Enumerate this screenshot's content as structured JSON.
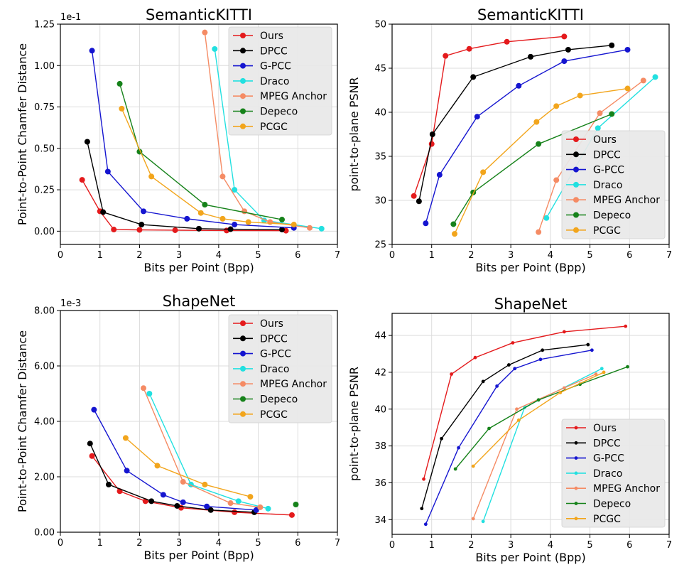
{
  "chart_data": [
    {
      "type": "line",
      "title": "SemanticKITTI",
      "xlabel": "Bits per Point (Bpp)",
      "ylabel": "Point-to-Point Chamfer Distance",
      "y_scale_label": "1e-1",
      "xlim": [
        0,
        7
      ],
      "ylim": [
        -0.08,
        1.25
      ],
      "xticks": [
        0,
        1,
        2,
        3,
        4,
        5,
        6,
        7
      ],
      "yticks": [
        0.0,
        0.25,
        0.5,
        0.75,
        1.0,
        1.25
      ],
      "ytick_labels": [
        "0.00",
        "0.25",
        "0.50",
        "0.75",
        "1.00",
        "1.25"
      ],
      "grid": true,
      "legend": "top-right",
      "series": [
        {
          "name": "Ours",
          "color": "#e41a1c",
          "x": [
            0.55,
            1.0,
            1.35,
            2.0,
            2.9,
            4.2,
            5.7
          ],
          "y": [
            0.31,
            0.12,
            0.01,
            0.008,
            0.006,
            0.004,
            0.003
          ]
        },
        {
          "name": "DPCC",
          "color": "#000000",
          "x": [
            0.68,
            1.08,
            2.05,
            3.5,
            4.3,
            5.6
          ],
          "y": [
            0.54,
            0.115,
            0.04,
            0.015,
            0.012,
            0.01
          ]
        },
        {
          "name": "G-PCC",
          "color": "#1515d0",
          "x": [
            0.8,
            1.2,
            2.1,
            3.2,
            4.4,
            5.9
          ],
          "y": [
            1.09,
            0.36,
            0.12,
            0.075,
            0.04,
            0.02
          ]
        },
        {
          "name": "Draco",
          "color": "#22e0e0",
          "x": [
            3.9,
            4.4,
            5.15,
            6.6
          ],
          "y": [
            1.1,
            0.25,
            0.065,
            0.015
          ]
        },
        {
          "name": "MPEG Anchor",
          "color": "#f58b64",
          "x": [
            3.65,
            4.1,
            4.65,
            5.3,
            6.3
          ],
          "y": [
            1.2,
            0.33,
            0.12,
            0.055,
            0.02
          ]
        },
        {
          "name": "Depeco",
          "color": "#16821a",
          "x": [
            1.5,
            2.0,
            3.65,
            5.6
          ],
          "y": [
            0.89,
            0.48,
            0.16,
            0.07
          ]
        },
        {
          "name": "PCGC",
          "color": "#f2a51c",
          "x": [
            1.55,
            2.3,
            3.55,
            4.1,
            4.75,
            5.9
          ],
          "y": [
            0.74,
            0.33,
            0.11,
            0.075,
            0.055,
            0.04
          ]
        }
      ]
    },
    {
      "type": "line",
      "title": "SemanticKITTI",
      "xlabel": "Bits per Point (Bpp)",
      "ylabel": "point-to-plane PSNR",
      "xlim": [
        0,
        7
      ],
      "ylim": [
        25,
        50
      ],
      "xticks": [
        0,
        1,
        2,
        3,
        4,
        5,
        6,
        7
      ],
      "yticks": [
        25,
        30,
        35,
        40,
        45,
        50
      ],
      "ytick_labels": [
        "25",
        "30",
        "35",
        "40",
        "45",
        "50"
      ],
      "grid": true,
      "legend": "bottom-right",
      "series": [
        {
          "name": "Ours",
          "color": "#e41a1c",
          "x": [
            0.55,
            1.0,
            1.35,
            1.95,
            2.9,
            4.35
          ],
          "y": [
            30.5,
            36.4,
            46.4,
            47.2,
            48.0,
            48.6
          ]
        },
        {
          "name": "DPCC",
          "color": "#000000",
          "x": [
            0.68,
            1.02,
            2.05,
            3.5,
            4.45,
            5.55
          ],
          "y": [
            29.9,
            37.5,
            44.0,
            46.3,
            47.1,
            47.6
          ]
        },
        {
          "name": "G-PCC",
          "color": "#1515d0",
          "x": [
            0.85,
            1.2,
            2.15,
            3.2,
            4.35,
            5.95
          ],
          "y": [
            27.4,
            32.9,
            39.5,
            43.0,
            45.8,
            47.1
          ]
        },
        {
          "name": "Draco",
          "color": "#22e0e0",
          "x": [
            3.9,
            5.2,
            6.65
          ],
          "y": [
            28.0,
            38.2,
            44.0
          ]
        },
        {
          "name": "MPEG Anchor",
          "color": "#f58b64",
          "x": [
            3.7,
            4.15,
            5.25,
            6.35
          ],
          "y": [
            26.4,
            32.3,
            39.9,
            43.6
          ]
        },
        {
          "name": "Depeco",
          "color": "#16821a",
          "x": [
            1.55,
            2.05,
            3.7,
            5.55
          ],
          "y": [
            27.3,
            30.9,
            36.4,
            39.8
          ]
        },
        {
          "name": "PCGC",
          "color": "#f2a51c",
          "x": [
            1.58,
            2.3,
            3.65,
            4.15,
            4.75,
            5.95
          ],
          "y": [
            26.2,
            33.2,
            38.9,
            40.7,
            41.9,
            42.7
          ]
        }
      ]
    },
    {
      "type": "line",
      "title": "ShapeNet",
      "xlabel": "Bits per Point (Bpp)",
      "ylabel": "Point-to-Point Chamfer Distance",
      "y_scale_label": "1e-3",
      "xlim": [
        0,
        7
      ],
      "ylim": [
        0,
        8
      ],
      "xticks": [
        0,
        1,
        2,
        3,
        4,
        5,
        6,
        7
      ],
      "yticks": [
        0,
        2,
        4,
        6,
        8
      ],
      "ytick_labels": [
        "0.00",
        "2.00",
        "4.00",
        "6.00",
        "8.00"
      ],
      "grid": true,
      "legend": "top-right",
      "series": [
        {
          "name": "Ours",
          "color": "#e41a1c",
          "x": [
            0.8,
            1.5,
            2.15,
            3.05,
            4.4,
            5.85
          ],
          "y": [
            2.75,
            1.48,
            1.12,
            0.88,
            0.72,
            0.62
          ]
        },
        {
          "name": "DPCC",
          "color": "#000000",
          "x": [
            0.75,
            1.22,
            2.3,
            2.95,
            3.8,
            4.9
          ],
          "y": [
            3.2,
            1.72,
            1.12,
            0.95,
            0.8,
            0.72
          ]
        },
        {
          "name": "G-PCC",
          "color": "#1515d0",
          "x": [
            0.85,
            1.68,
            2.6,
            3.1,
            3.7,
            4.95
          ],
          "y": [
            4.42,
            2.22,
            1.35,
            1.08,
            0.93,
            0.8
          ]
        },
        {
          "name": "Draco",
          "color": "#22e0e0",
          "x": [
            2.25,
            3.3,
            4.5,
            5.25
          ],
          "y": [
            5.0,
            1.72,
            1.12,
            0.85
          ]
        },
        {
          "name": "MPEG Anchor",
          "color": "#f58b64",
          "x": [
            2.1,
            3.1,
            4.3,
            5.05
          ],
          "y": [
            5.2,
            1.82,
            1.05,
            0.9
          ]
        },
        {
          "name": "Depeco",
          "color": "#16821a",
          "x": [
            5.95
          ],
          "y": [
            1.0
          ]
        },
        {
          "name": "PCGC",
          "color": "#f2a51c",
          "x": [
            1.65,
            2.45,
            3.65,
            4.8
          ],
          "y": [
            3.4,
            2.4,
            1.72,
            1.28
          ]
        }
      ]
    },
    {
      "type": "line",
      "title": "ShapeNet",
      "xlabel": "Bits per Point (Bpp)",
      "ylabel": "point-to-plane PSNR",
      "xlim": [
        0,
        7
      ],
      "ylim": [
        33.2,
        45.2
      ],
      "xticks": [
        0,
        1,
        2,
        3,
        4,
        5,
        6,
        7
      ],
      "yticks": [
        34,
        36,
        38,
        40,
        42,
        44
      ],
      "ytick_labels": [
        "34",
        "36",
        "38",
        "40",
        "42",
        "44"
      ],
      "grid": true,
      "legend": "bottom-right",
      "series": [
        {
          "name": "Ours",
          "color": "#e41a1c",
          "x": [
            0.8,
            1.5,
            2.1,
            3.05,
            4.35,
            5.9
          ],
          "y": [
            36.2,
            41.9,
            42.8,
            43.6,
            44.2,
            44.5
          ]
        },
        {
          "name": "DPCC",
          "color": "#000000",
          "x": [
            0.75,
            1.25,
            2.3,
            2.95,
            3.8,
            4.95
          ],
          "y": [
            34.6,
            38.4,
            41.5,
            42.4,
            43.2,
            43.5
          ]
        },
        {
          "name": "G-PCC",
          "color": "#1515d0",
          "x": [
            0.85,
            1.68,
            2.65,
            3.1,
            3.75,
            5.05
          ],
          "y": [
            33.75,
            37.9,
            41.25,
            42.2,
            42.7,
            43.2
          ]
        },
        {
          "name": "Draco",
          "color": "#22e0e0",
          "x": [
            2.3,
            3.35,
            5.3
          ],
          "y": [
            33.9,
            40.1,
            42.2
          ]
        },
        {
          "name": "MPEG Anchor",
          "color": "#f58b64",
          "x": [
            2.05,
            3.15,
            4.35,
            5.15
          ],
          "y": [
            34.05,
            40.0,
            41.15,
            41.9
          ]
        },
        {
          "name": "Depeco",
          "color": "#16821a",
          "x": [
            1.6,
            2.45,
            3.7,
            4.75,
            5.95
          ],
          "y": [
            36.75,
            38.95,
            40.5,
            41.35,
            42.3
          ]
        },
        {
          "name": "PCGC",
          "color": "#f2a51c",
          "x": [
            2.05,
            3.2,
            4.25,
            5.35
          ],
          "y": [
            36.9,
            39.4,
            40.9,
            42.0
          ]
        }
      ]
    }
  ]
}
